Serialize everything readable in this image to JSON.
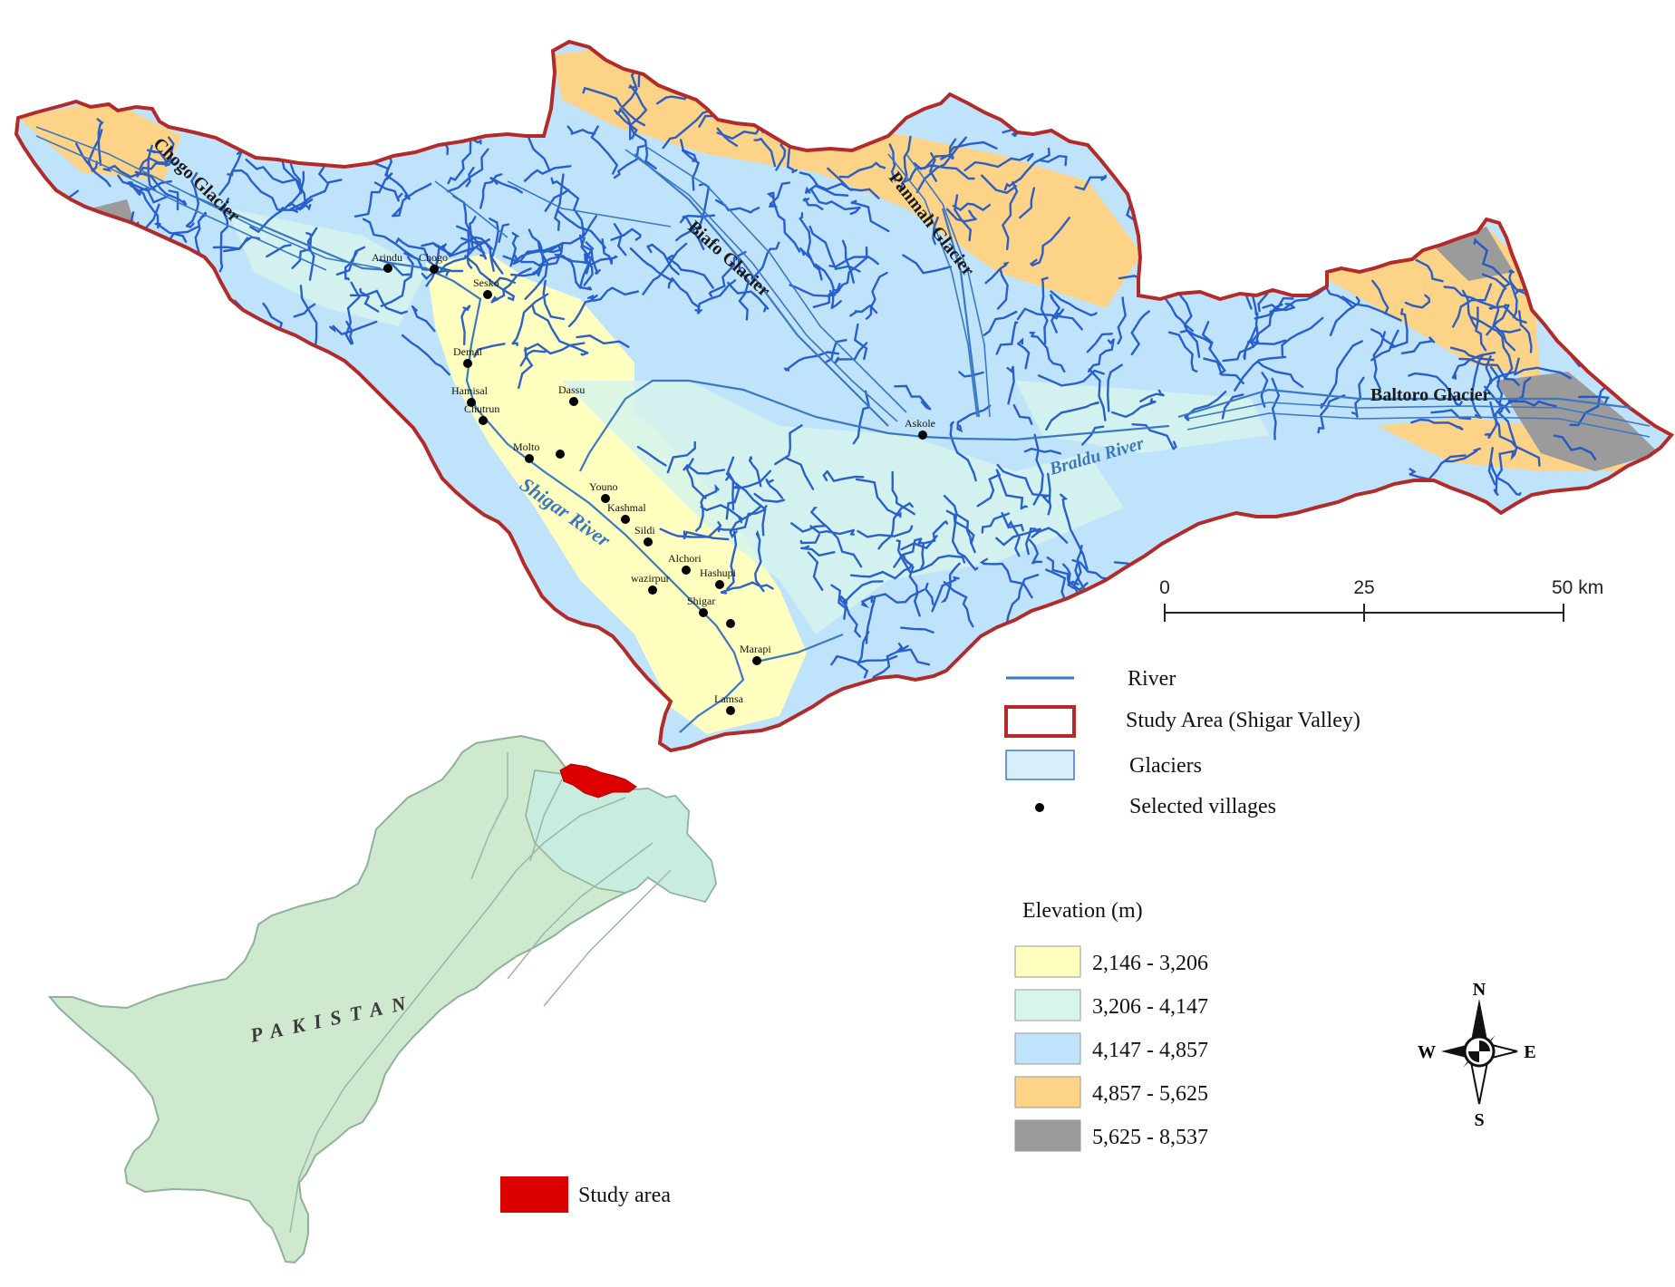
{
  "map": {
    "glacier_labels": [
      "Chogo Glacier",
      "Biafo Glacier",
      "Panmah Glacier",
      "Baltoro Glacier"
    ],
    "river_labels": [
      "Shigar River",
      "Braldu River"
    ],
    "villages": [
      "Arindu",
      "Chogo",
      "Sesko",
      "Demal",
      "Hamisal",
      "Chutrun",
      "Dassu",
      "Molto",
      "Youno",
      "Kashmal",
      "Sildi",
      "Alchori",
      "Hashupi",
      "wazirpur",
      "Shigar",
      "Marapi",
      "Lamsa",
      "Askole"
    ],
    "unlabeled_village_points": 2
  },
  "scale_bar": {
    "ticks": [
      "0",
      "25",
      "50 km"
    ]
  },
  "legend": {
    "items": [
      {
        "label": "River",
        "symbol": "line",
        "color": "#3b78c4"
      },
      {
        "label": "Study Area (Shigar Valley)",
        "symbol": "outline-box",
        "color": "#b22a2a"
      },
      {
        "label": "Glaciers",
        "symbol": "box",
        "color": "#d9eefb"
      },
      {
        "label": "Selected villages",
        "symbol": "dot",
        "color": "#000000"
      }
    ]
  },
  "elevation_legend": {
    "title": "Elevation (m)",
    "classes": [
      {
        "label": "2,146 - 3,206",
        "color": "#ffffc0"
      },
      {
        "label": "3,206 - 4,147",
        "color": "#d6f5ec"
      },
      {
        "label": "4,147 - 4,857",
        "color": "#bfe3fb"
      },
      {
        "label": "4,857 - 5,625",
        "color": "#fcd387"
      },
      {
        "label": "5,625 - 8,537",
        "color": "#9b9b9b"
      }
    ]
  },
  "compass": {
    "n": "N",
    "s": "S",
    "e": "E",
    "w": "W"
  },
  "inset": {
    "country_label": "PAKISTAN",
    "country_color": "#cfe9cf",
    "region_color": "#c8ece0",
    "study_area_color": "#dd0000"
  },
  "inset_legend": {
    "label": "Study area",
    "color": "#dd0000"
  },
  "colors": {
    "boundary": "#b22a2a",
    "glacier_line": "#1c54c8",
    "river": "#3b78c4"
  }
}
